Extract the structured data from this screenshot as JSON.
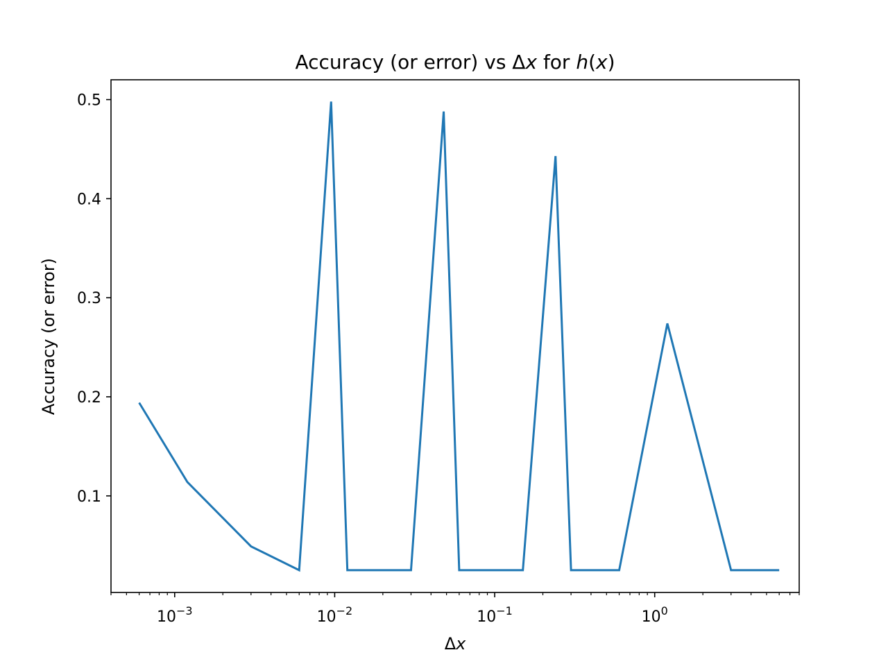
{
  "chart_data": {
    "type": "line",
    "title": "Accuracy (or error) vs Δx for h(x)",
    "title_parts": {
      "lead": "Accuracy (or error) vs Δ",
      "var": "x",
      "mid": " for ",
      "fn": "h",
      "paren_open": "(",
      "arg": "x",
      "paren_close": ")"
    },
    "xlabel": "Δx",
    "xlabel_parts": {
      "delta": "Δ",
      "var": "x"
    },
    "ylabel": "Accuracy (or error)",
    "xscale": "log",
    "xlim": [
      0.0004,
      8.0
    ],
    "ylim": [
      0.0025,
      0.52
    ],
    "xticks": [
      {
        "value": 0.001,
        "base": "10",
        "exp": "−3"
      },
      {
        "value": 0.01,
        "base": "10",
        "exp": "−2"
      },
      {
        "value": 0.1,
        "base": "10",
        "exp": "−1"
      },
      {
        "value": 1,
        "base": "10",
        "exp": "0"
      }
    ],
    "yticks": [
      {
        "value": 0.1,
        "label": "0.1"
      },
      {
        "value": 0.2,
        "label": "0.2"
      },
      {
        "value": 0.3,
        "label": "0.3"
      },
      {
        "value": 0.4,
        "label": "0.4"
      },
      {
        "value": 0.5,
        "label": "0.5"
      }
    ],
    "grid": false,
    "series": [
      {
        "name": "h(x)",
        "color": "#1f77b4",
        "x": [
          0.0006,
          0.0012,
          0.003,
          0.006,
          0.0095,
          0.012,
          0.03,
          0.048,
          0.06,
          0.15,
          0.24,
          0.3,
          0.6,
          1.2,
          3.0,
          6.0
        ],
        "y": [
          0.194,
          0.114,
          0.049,
          0.025,
          0.498,
          0.025,
          0.025,
          0.488,
          0.025,
          0.025,
          0.443,
          0.025,
          0.025,
          0.274,
          0.025,
          0.025
        ]
      }
    ]
  }
}
